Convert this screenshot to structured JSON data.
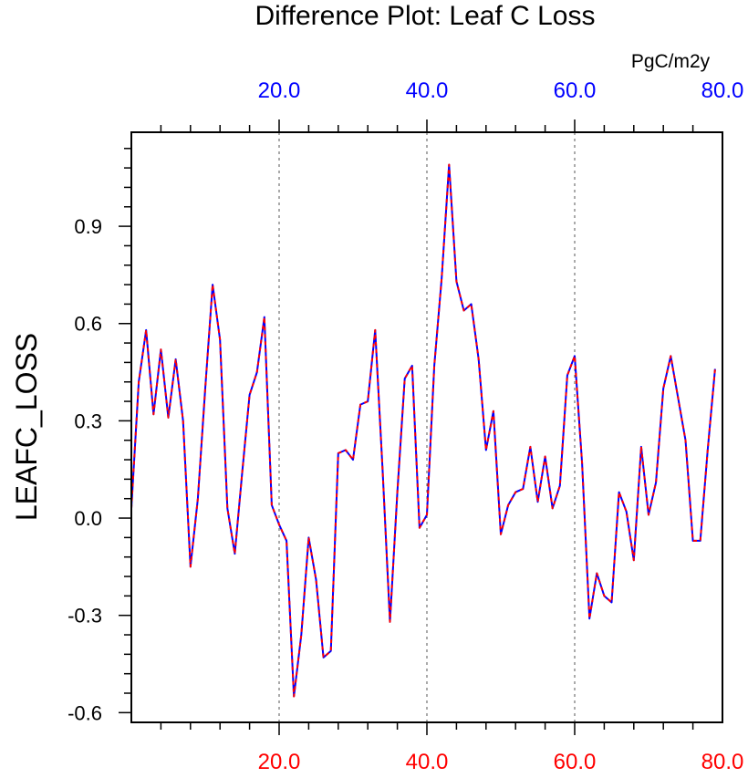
{
  "chart_data": {
    "type": "line",
    "title": "Difference Plot: Leaf C Loss",
    "ylabel": "LEAFC_LOSS",
    "units": "PgC/m2y",
    "xlim": [
      0,
      80
    ],
    "ylim": [
      -0.63,
      1.19
    ],
    "grid": "vertical dashed at 20, 40, 60",
    "x_ticks": [
      20,
      40,
      60,
      80
    ],
    "x_tick_labels": [
      "20.0",
      "40.0",
      "60.0",
      "80.0"
    ],
    "y_ticks": [
      -0.6,
      -0.3,
      0.0,
      0.3,
      0.6,
      0.9
    ],
    "y_tick_labels": [
      "-0.6",
      "-0.3",
      "0.0",
      "0.3",
      "0.6",
      "0.9"
    ],
    "colors": {
      "bottom_axis_labels": "#ff0000",
      "top_axis_labels": "#0000ff",
      "line_base": "#0000ff",
      "line_overlay": "#ff0000"
    },
    "series": [
      {
        "values": [
          0.03,
          0.42,
          0.58,
          0.32,
          0.52,
          0.31,
          0.49,
          0.3,
          -0.15,
          0.06,
          0.4,
          0.72,
          0.55,
          0.03,
          -0.11,
          0.14,
          0.38,
          0.45,
          0.62,
          0.04,
          -0.02,
          -0.07,
          -0.55,
          -0.36,
          -0.06,
          -0.19,
          -0.43,
          -0.41,
          0.2,
          0.21,
          0.18,
          0.35,
          0.36,
          0.58,
          0.15,
          -0.32,
          0.08,
          0.43,
          0.47,
          -0.03,
          0.01,
          0.47,
          0.74,
          1.09,
          0.73,
          0.64,
          0.66,
          0.49,
          0.21,
          0.33,
          -0.05,
          0.04,
          0.08,
          0.09,
          0.22,
          0.05,
          0.19,
          0.03,
          0.1,
          0.44,
          0.5,
          0.17,
          -0.31,
          -0.17,
          -0.24,
          -0.26,
          0.08,
          0.02,
          -0.13,
          0.22,
          0.01,
          0.11,
          0.4,
          0.5,
          0.37,
          0.24,
          -0.07,
          -0.07,
          0.21,
          0.46
        ]
      }
    ]
  }
}
